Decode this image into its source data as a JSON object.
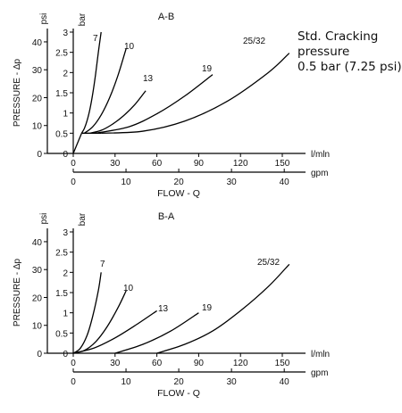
{
  "note": {
    "line1": "Std. Cracking",
    "line2": "pressure",
    "line3": "0.5 bar (7.25 psi)"
  },
  "chart_data": [
    {
      "type": "line",
      "title": "A-B",
      "xlabel": "FLOW - Q",
      "ylabel": "PRESSURE - Δp",
      "x_unit_primary": "l/mln",
      "x_unit_secondary": "gpm",
      "y_unit_primary": "bar",
      "y_unit_secondary": "psi",
      "xlim": [
        0,
        150
      ],
      "ylim": [
        0,
        3
      ],
      "x_ticks": [
        "0",
        "30",
        "60",
        "90",
        "120",
        "150"
      ],
      "x2_ticks": [
        "0",
        "10",
        "20",
        "30",
        "40"
      ],
      "y_ticks": [
        "0",
        "0.5",
        "1",
        "1.5",
        "2",
        "2.5",
        "3"
      ],
      "y2_ticks": [
        "0",
        "10",
        "20",
        "30",
        "40"
      ],
      "grid": false,
      "series": [
        {
          "name": "7",
          "x": [
            6,
            8,
            10,
            12,
            14,
            16,
            18,
            20
          ],
          "y": [
            0.5,
            0.62,
            0.82,
            1.1,
            1.48,
            1.95,
            2.5,
            3.0
          ]
        },
        {
          "name": "10",
          "x": [
            8,
            14,
            20,
            26,
            32,
            38
          ],
          "y": [
            0.5,
            0.66,
            0.95,
            1.37,
            1.92,
            2.6
          ]
        },
        {
          "name": "13",
          "x": [
            12,
            20,
            28,
            36,
            44,
            52
          ],
          "y": [
            0.5,
            0.57,
            0.72,
            0.93,
            1.2,
            1.55
          ]
        },
        {
          "name": "19",
          "x": [
            16,
            40,
            60,
            80,
            100
          ],
          "y": [
            0.5,
            0.66,
            0.98,
            1.42,
            1.95
          ]
        },
        {
          "name": "25/32",
          "x": [
            20,
            50,
            80,
            110,
            140,
            155
          ],
          "y": [
            0.5,
            0.55,
            0.8,
            1.28,
            2.0,
            2.48
          ]
        }
      ]
    },
    {
      "type": "line",
      "title": "B-A",
      "xlabel": "FLOW - Q",
      "ylabel": "PRESSURE - Δp",
      "x_unit_primary": "l/mln",
      "x_unit_secondary": "gpm",
      "y_unit_primary": "bar",
      "y_unit_secondary": "psi",
      "xlim": [
        0,
        150
      ],
      "ylim": [
        0,
        3
      ],
      "x_ticks": [
        "0",
        "30",
        "60",
        "90",
        "120",
        "150"
      ],
      "x2_ticks": [
        "0",
        "10",
        "20",
        "30",
        "40"
      ],
      "y_ticks": [
        "0",
        "0.5",
        "1",
        "1.5",
        "2",
        "2.5",
        "3"
      ],
      "y2_ticks": [
        "0",
        "10",
        "20",
        "30",
        "40"
      ],
      "grid": false,
      "series": [
        {
          "name": "7",
          "x": [
            0,
            5,
            10,
            14,
            18,
            20
          ],
          "y": [
            0,
            0.12,
            0.45,
            0.92,
            1.55,
            2.0
          ]
        },
        {
          "name": "10",
          "x": [
            0,
            8,
            16,
            24,
            32,
            38
          ],
          "y": [
            0,
            0.07,
            0.28,
            0.64,
            1.12,
            1.55
          ]
        },
        {
          "name": "13",
          "x": [
            0,
            15,
            30,
            45,
            60
          ],
          "y": [
            0,
            0.13,
            0.38,
            0.7,
            1.05
          ]
        },
        {
          "name": "19",
          "x": [
            30,
            50,
            70,
            90
          ],
          "y": [
            0,
            0.22,
            0.55,
            1.0
          ]
        },
        {
          "name": "25/32",
          "x": [
            60,
            80,
            100,
            120,
            140,
            155
          ],
          "y": [
            0,
            0.22,
            0.55,
            1.05,
            1.65,
            2.2
          ]
        }
      ]
    }
  ]
}
